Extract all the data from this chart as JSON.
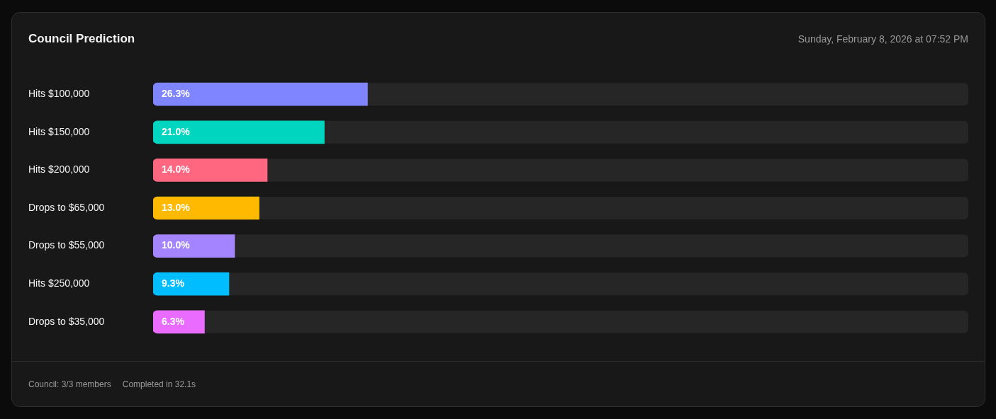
{
  "chart_data": {
    "type": "bar",
    "orientation": "horizontal",
    "title": "Council Prediction",
    "subtitle": "Sunday, February 8, 2026 at 07:52 PM",
    "categories": [
      "Hits $100,000",
      "Hits $150,000",
      "Hits $200,000",
      "Drops to $65,000",
      "Drops to $55,000",
      "Hits $250,000",
      "Drops to $35,000"
    ],
    "values": [
      26.3,
      21.0,
      14.0,
      13.0,
      10.0,
      9.3,
      6.3
    ],
    "colors": [
      "#7f85ff",
      "#00d5c0",
      "#ff6680",
      "#ffba00",
      "#a585ff",
      "#00bdff",
      "#ea6bff"
    ],
    "value_labels": [
      "26.3%",
      "21.0%",
      "14.0%",
      "13.0%",
      "10.0%",
      "9.3%",
      "6.3%"
    ],
    "xlim": [
      0,
      100
    ],
    "tick_labels": "y",
    "annotations": [
      "Council: 3/3 members",
      "Completed in 32.1s"
    ]
  }
}
